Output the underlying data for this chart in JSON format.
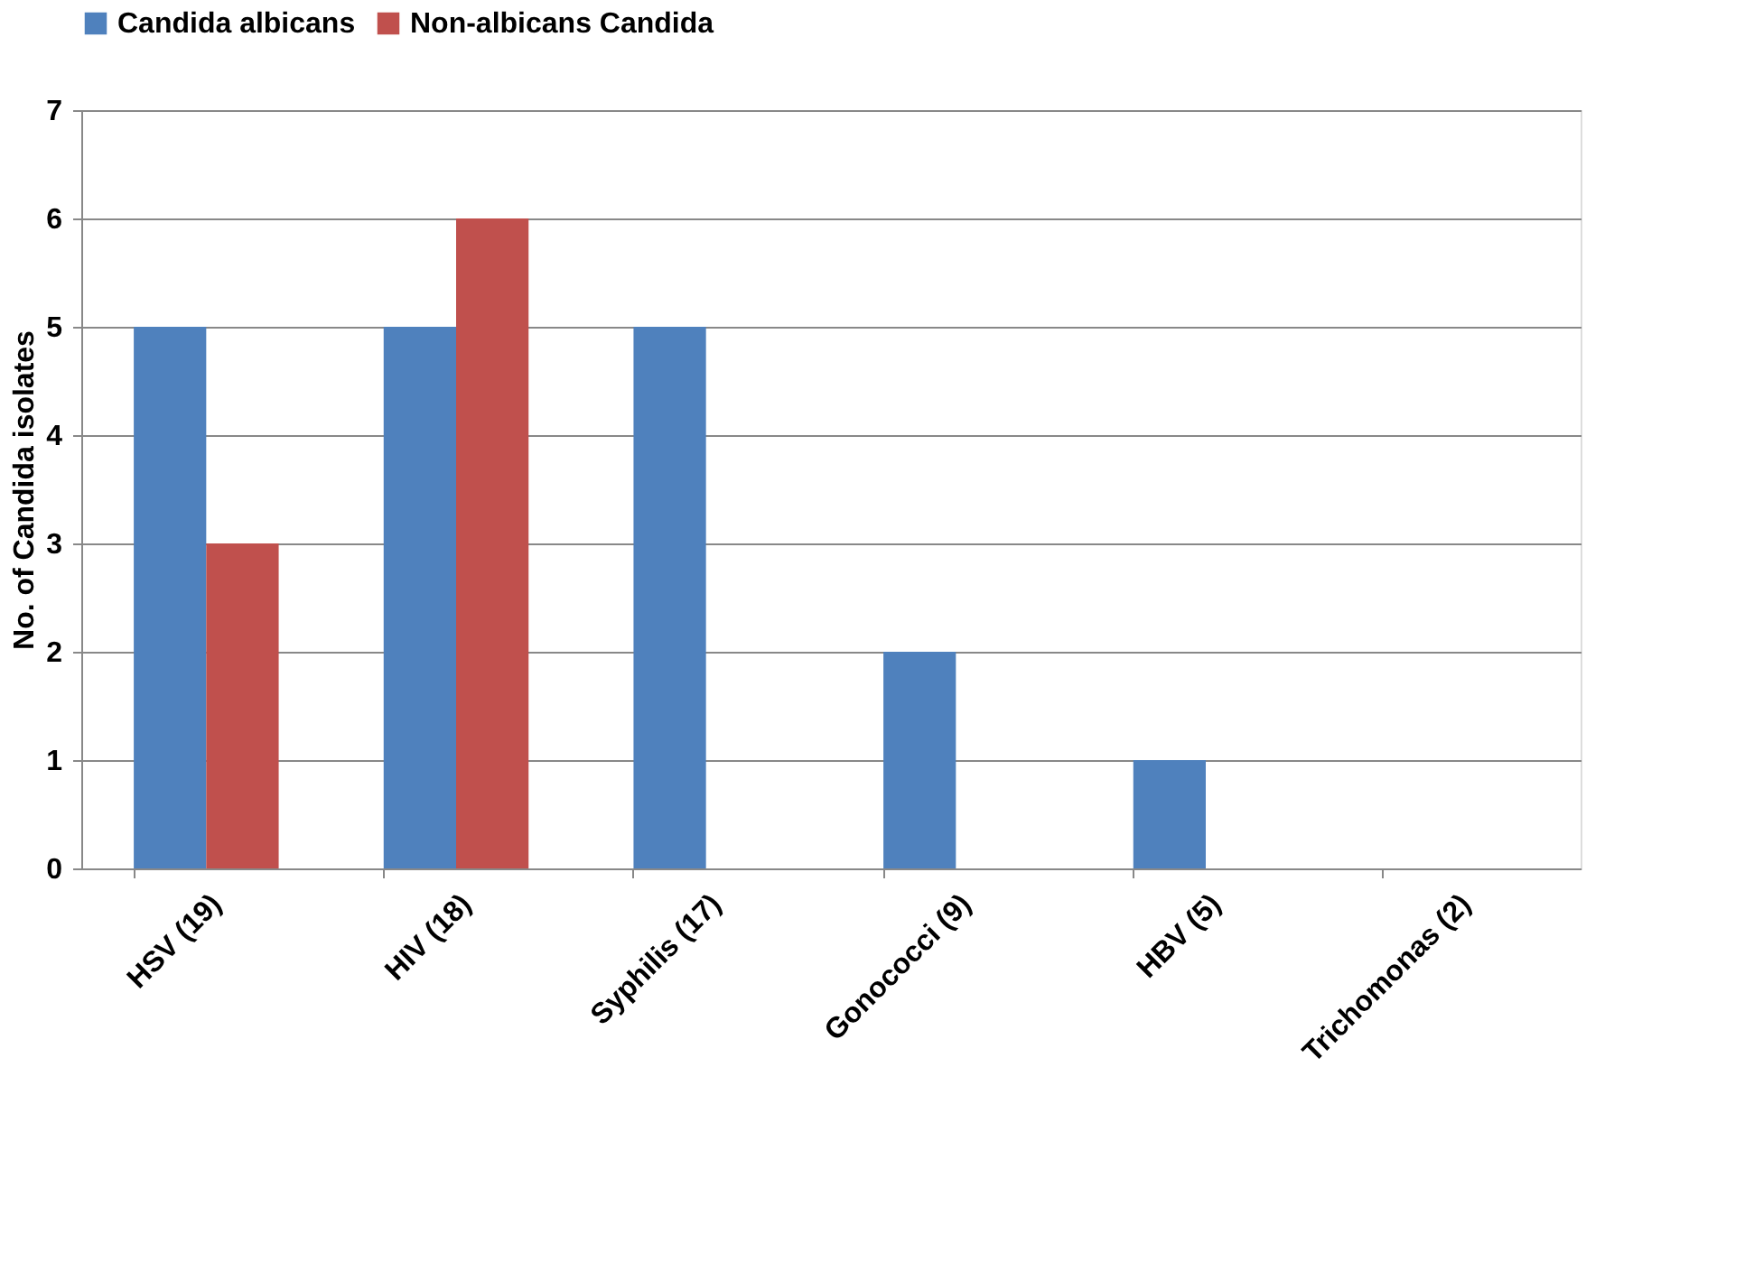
{
  "chart_data": {
    "type": "bar",
    "ylabel": "No. of Candida isolates",
    "categories": [
      "HSV (19)",
      "HIV (18)",
      "Syphilis (17)",
      "Gonococci (9)",
      "HBV (5)",
      "Trichomonas (2)"
    ],
    "series": [
      {
        "name": "Candida albicans",
        "color": "#4f81bd",
        "values": [
          5,
          5,
          5,
          2,
          1,
          0
        ]
      },
      {
        "name": "Non-albicans Candida",
        "color": "#c0504d",
        "values": [
          3,
          6,
          0,
          0,
          0,
          0
        ]
      }
    ],
    "ylim": [
      0,
      7
    ],
    "yticks": [
      0,
      1,
      2,
      3,
      4,
      5,
      6,
      7
    ],
    "grid": "y",
    "legend": "top"
  }
}
